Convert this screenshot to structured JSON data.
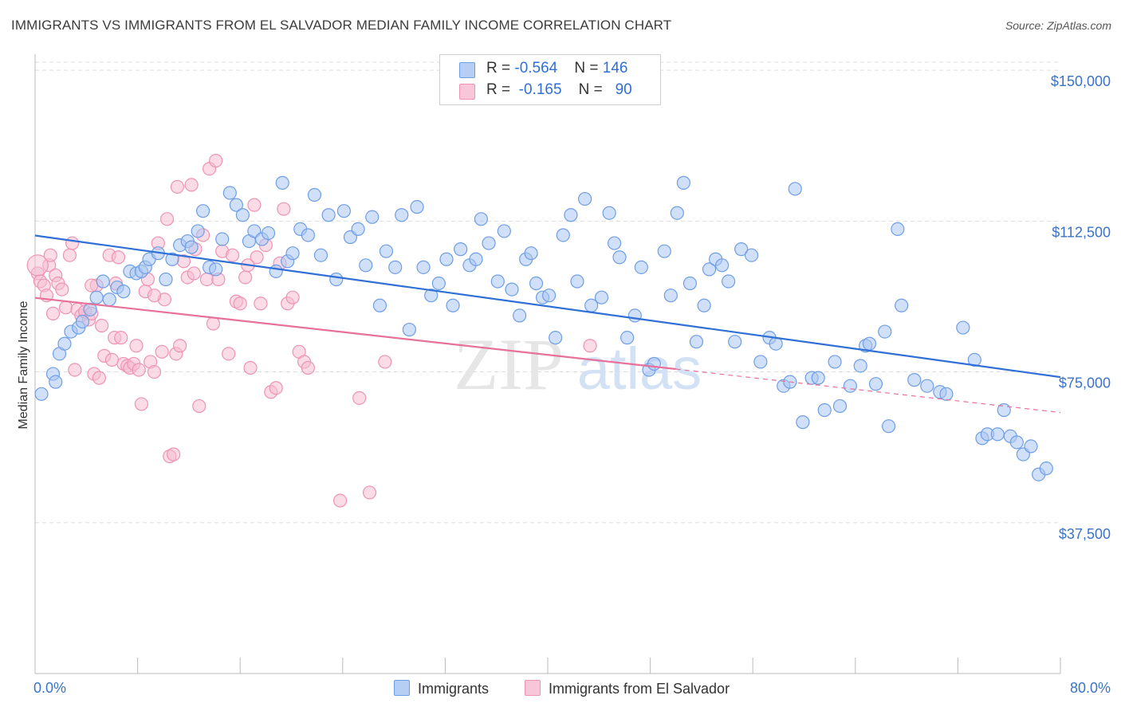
{
  "title": "IMMIGRANTS VS IMMIGRANTS FROM EL SALVADOR MEDIAN FAMILY INCOME CORRELATION CHART",
  "source": "Source: ZipAtlas.com",
  "watermark": {
    "zip": "ZIP",
    "atlas": "atlas"
  },
  "legend": {
    "rows": [
      {
        "r_label": "R = ",
        "r_value": "-0.564",
        "n_label": "N = ",
        "n_value": "146"
      },
      {
        "r_label": "R = ",
        "r_value": " -0.165",
        "n_label": "N = ",
        "n_value": "  90"
      }
    ]
  },
  "bottom_legend": [
    "Immigrants",
    "Immigrants from El Salvador"
  ],
  "colors": {
    "blue": "#2f6fd6",
    "blue_fill": "#a9c6f2",
    "blue_stroke": "#6f9ee6",
    "pink": "#e8709a",
    "pink_fill": "#f6bed2",
    "pink_stroke": "#ee93b4",
    "grid": "#dddddd",
    "axis_text": "#3a73c8"
  },
  "chart_data": {
    "type": "scatter",
    "title": "IMMIGRANTS VS IMMIGRANTS FROM EL SALVADOR MEDIAN FAMILY INCOME CORRELATION CHART",
    "xlabel": "",
    "ylabel": "Median Family Income",
    "xlim": [
      0,
      80
    ],
    "ylim": [
      0,
      152000
    ],
    "x_tick_labels": [
      "0.0%",
      "80.0%"
    ],
    "y_ticks": [
      37500,
      75000,
      112500,
      150000
    ],
    "y_tick_labels": [
      "$37,500",
      "$75,000",
      "$112,500",
      "$150,000"
    ],
    "grid": true,
    "legend_position": "top-center",
    "series": [
      {
        "name": "Immigrants",
        "r": -0.564,
        "n": 146,
        "trend": {
          "x0": 0,
          "y0": 108900,
          "x1": 80,
          "y1": 73700
        },
        "points": [
          [
            0.5,
            69500
          ],
          [
            1.4,
            74500
          ],
          [
            1.6,
            72500
          ],
          [
            1.9,
            79500
          ],
          [
            2.3,
            82000
          ],
          [
            2.8,
            85000
          ],
          [
            3.4,
            86000
          ],
          [
            3.7,
            87500
          ],
          [
            4.3,
            90500
          ],
          [
            4.8,
            93500
          ],
          [
            5.3,
            97500
          ],
          [
            5.8,
            93000
          ],
          [
            6.4,
            96000
          ],
          [
            6.9,
            95000
          ],
          [
            7.4,
            100000
          ],
          [
            7.9,
            99500
          ],
          [
            8.3,
            100000
          ],
          [
            8.6,
            101000
          ],
          [
            8.9,
            103000
          ],
          [
            9.6,
            104500
          ],
          [
            10.2,
            98000
          ],
          [
            10.7,
            103000
          ],
          [
            11.3,
            106500
          ],
          [
            11.9,
            107500
          ],
          [
            12.2,
            106000
          ],
          [
            12.7,
            110000
          ],
          [
            13.1,
            115000
          ],
          [
            13.6,
            101000
          ],
          [
            14.1,
            100500
          ],
          [
            14.6,
            108000
          ],
          [
            15.2,
            119500
          ],
          [
            15.7,
            116500
          ],
          [
            16.2,
            114000
          ],
          [
            16.7,
            107500
          ],
          [
            17.1,
            110000
          ],
          [
            17.7,
            108000
          ],
          [
            18.2,
            109500
          ],
          [
            18.8,
            100000
          ],
          [
            19.3,
            122000
          ],
          [
            19.7,
            102500
          ],
          [
            20.1,
            104500
          ],
          [
            20.7,
            110500
          ],
          [
            21.3,
            109000
          ],
          [
            21.8,
            119000
          ],
          [
            22.3,
            104000
          ],
          [
            22.9,
            114000
          ],
          [
            23.5,
            98000
          ],
          [
            24.1,
            115000
          ],
          [
            24.6,
            108500
          ],
          [
            25.2,
            110500
          ],
          [
            25.8,
            101500
          ],
          [
            26.3,
            113500
          ],
          [
            26.9,
            91500
          ],
          [
            27.4,
            105000
          ],
          [
            28.1,
            101000
          ],
          [
            28.6,
            114000
          ],
          [
            29.2,
            85500
          ],
          [
            29.8,
            116000
          ],
          [
            30.3,
            101000
          ],
          [
            30.9,
            94000
          ],
          [
            31.5,
            97000
          ],
          [
            32.1,
            103000
          ],
          [
            32.6,
            91500
          ],
          [
            33.2,
            105500
          ],
          [
            33.9,
            101500
          ],
          [
            34.4,
            103000
          ],
          [
            34.8,
            113000
          ],
          [
            35.4,
            107000
          ],
          [
            36.1,
            97500
          ],
          [
            36.6,
            110000
          ],
          [
            37.2,
            95500
          ],
          [
            37.8,
            89000
          ],
          [
            38.3,
            103000
          ],
          [
            38.7,
            104500
          ],
          [
            39.1,
            97000
          ],
          [
            39.6,
            93500
          ],
          [
            40.1,
            94000
          ],
          [
            40.6,
            83500
          ],
          [
            41.2,
            109000
          ],
          [
            41.8,
            114000
          ],
          [
            42.3,
            97500
          ],
          [
            42.9,
            118000
          ],
          [
            43.4,
            91500
          ],
          [
            44.2,
            93500
          ],
          [
            44.8,
            114500
          ],
          [
            45.2,
            107000
          ],
          [
            45.6,
            103500
          ],
          [
            46.2,
            83500
          ],
          [
            46.8,
            89000
          ],
          [
            47.3,
            101000
          ],
          [
            47.9,
            75500
          ],
          [
            48.3,
            77000
          ],
          [
            49.1,
            105000
          ],
          [
            49.6,
            94000
          ],
          [
            50.1,
            114500
          ],
          [
            50.6,
            122000
          ],
          [
            51.1,
            97000
          ],
          [
            51.6,
            82500
          ],
          [
            52.2,
            91500
          ],
          [
            52.6,
            100500
          ],
          [
            53.1,
            103000
          ],
          [
            53.6,
            101500
          ],
          [
            54.1,
            97500
          ],
          [
            54.6,
            82500
          ],
          [
            55.1,
            105500
          ],
          [
            55.9,
            104000
          ],
          [
            56.6,
            77500
          ],
          [
            57.3,
            83500
          ],
          [
            57.8,
            82000
          ],
          [
            58.4,
            71500
          ],
          [
            58.9,
            72500
          ],
          [
            59.3,
            120500
          ],
          [
            59.9,
            62500
          ],
          [
            60.6,
            73500
          ],
          [
            61.1,
            73500
          ],
          [
            61.6,
            65500
          ],
          [
            62.4,
            77500
          ],
          [
            62.8,
            66500
          ],
          [
            63.6,
            71500
          ],
          [
            64.4,
            76500
          ],
          [
            64.8,
            81500
          ],
          [
            65.1,
            82000
          ],
          [
            65.6,
            72000
          ],
          [
            66.3,
            85000
          ],
          [
            66.6,
            61500
          ],
          [
            67.3,
            110500
          ],
          [
            67.6,
            91500
          ],
          [
            68.6,
            73000
          ],
          [
            69.6,
            71500
          ],
          [
            70.6,
            70000
          ],
          [
            71.1,
            69500
          ],
          [
            72.4,
            86000
          ],
          [
            73.3,
            78000
          ],
          [
            73.9,
            58500
          ],
          [
            74.3,
            59500
          ],
          [
            75.1,
            59500
          ],
          [
            75.6,
            65500
          ],
          [
            76.1,
            59000
          ],
          [
            76.6,
            57500
          ],
          [
            77.1,
            54500
          ],
          [
            77.7,
            56500
          ],
          [
            78.3,
            49500
          ],
          [
            78.9,
            51000
          ],
          [
            80.1,
            49500
          ],
          [
            80.7,
            49500
          ],
          [
            81.1,
            48000
          ]
        ]
      },
      {
        "name": "Immigrants from El Salvador",
        "r": -0.165,
        "n": 90,
        "trend": {
          "x0": 0,
          "y0": 93400,
          "x1": 50,
          "y1": 75700,
          "dashed_to_x": 80,
          "dashed_to_y": 64900
        },
        "points": [
          [
            0.2,
            99500
          ],
          [
            0.4,
            97500
          ],
          [
            0.7,
            96500
          ],
          [
            0.9,
            94000
          ],
          [
            1.1,
            101500
          ],
          [
            1.2,
            104000
          ],
          [
            1.4,
            89500
          ],
          [
            1.6,
            99000
          ],
          [
            1.8,
            97000
          ],
          [
            2.1,
            95500
          ],
          [
            2.4,
            91000
          ],
          [
            2.7,
            104000
          ],
          [
            2.9,
            107000
          ],
          [
            3.1,
            75500
          ],
          [
            3.3,
            90500
          ],
          [
            3.6,
            89000
          ],
          [
            3.9,
            90000
          ],
          [
            4.2,
            88000
          ],
          [
            4.4,
            89500
          ],
          [
            4.6,
            74500
          ],
          [
            4.8,
            96500
          ],
          [
            5.0,
            73500
          ],
          [
            5.2,
            86500
          ],
          [
            5.4,
            79000
          ],
          [
            5.8,
            104000
          ],
          [
            6.0,
            78000
          ],
          [
            6.2,
            83500
          ],
          [
            6.5,
            103500
          ],
          [
            6.7,
            83500
          ],
          [
            6.9,
            77000
          ],
          [
            7.2,
            76500
          ],
          [
            7.4,
            76000
          ],
          [
            7.7,
            77000
          ],
          [
            7.9,
            81500
          ],
          [
            8.1,
            75500
          ],
          [
            8.3,
            67000
          ],
          [
            8.6,
            95000
          ],
          [
            8.8,
            98000
          ],
          [
            9.0,
            77500
          ],
          [
            9.3,
            75000
          ],
          [
            9.6,
            107000
          ],
          [
            9.9,
            80000
          ],
          [
            10.1,
            93000
          ],
          [
            10.3,
            113000
          ],
          [
            10.5,
            54000
          ],
          [
            10.8,
            54500
          ],
          [
            11.0,
            79500
          ],
          [
            11.3,
            81500
          ],
          [
            11.6,
            102500
          ],
          [
            11.9,
            98500
          ],
          [
            12.2,
            121500
          ],
          [
            12.5,
            105500
          ],
          [
            12.8,
            66500
          ],
          [
            13.1,
            109000
          ],
          [
            13.4,
            98000
          ],
          [
            13.6,
            125500
          ],
          [
            13.9,
            87000
          ],
          [
            14.1,
            127500
          ],
          [
            14.3,
            98000
          ],
          [
            14.6,
            105000
          ],
          [
            15.1,
            79500
          ],
          [
            15.4,
            104000
          ],
          [
            15.7,
            92500
          ],
          [
            16.0,
            92000
          ],
          [
            16.4,
            98500
          ],
          [
            16.8,
            76000
          ],
          [
            17.1,
            116500
          ],
          [
            17.3,
            103500
          ],
          [
            17.6,
            92000
          ],
          [
            18.0,
            106500
          ],
          [
            18.4,
            70000
          ],
          [
            18.8,
            71000
          ],
          [
            19.1,
            102000
          ],
          [
            19.4,
            115500
          ],
          [
            19.7,
            92000
          ],
          [
            20.1,
            93500
          ],
          [
            20.6,
            80000
          ],
          [
            21.0,
            77500
          ],
          [
            21.3,
            76000
          ],
          [
            23.8,
            43000
          ],
          [
            25.3,
            68500
          ],
          [
            26.1,
            45000
          ],
          [
            12.4,
            99500
          ],
          [
            11.1,
            121000
          ],
          [
            16.6,
            101500
          ],
          [
            9.3,
            94000
          ],
          [
            6.3,
            97000
          ],
          [
            4.4,
            96500
          ],
          [
            27.3,
            77500
          ],
          [
            43.3,
            81500
          ]
        ]
      }
    ]
  }
}
